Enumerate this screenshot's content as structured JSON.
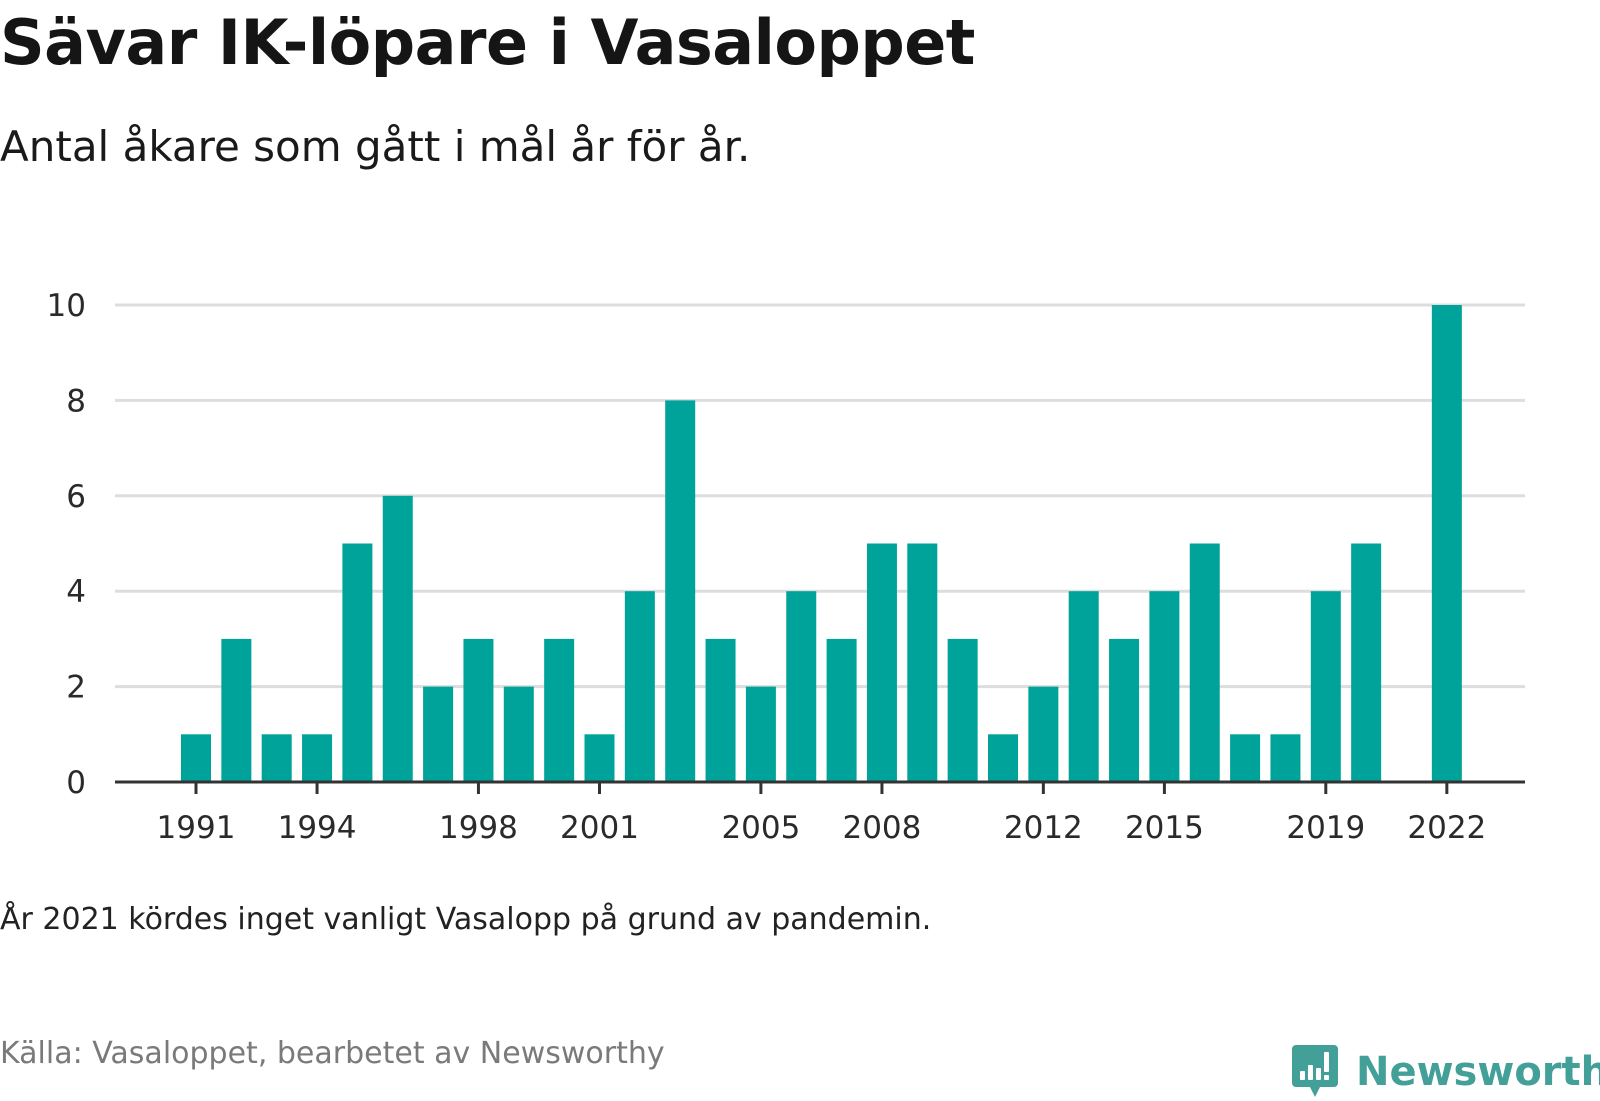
{
  "title": "Sävar IK-löpare i Vasaloppet",
  "subtitle": "Antal åkare som gått i mål år för år.",
  "note": "År 2021 kördes inget vanligt Vasalopp på grund av pandemin.",
  "source": "Källa: Vasaloppet, bearbetet av Newsworthy",
  "brand": {
    "name": "Newsworthy",
    "icon": "newsworthy-logo-icon",
    "color": "#42a098"
  },
  "chart_data": {
    "type": "bar",
    "bar_color": "#00a39a",
    "grid": true,
    "grid_color": "#dddddd",
    "x": [
      1991,
      1992,
      1993,
      1994,
      1995,
      1996,
      1997,
      1998,
      1999,
      2000,
      2001,
      2002,
      2003,
      2004,
      2005,
      2006,
      2007,
      2008,
      2009,
      2010,
      2011,
      2012,
      2013,
      2014,
      2015,
      2016,
      2017,
      2018,
      2019,
      2020,
      2021,
      2022
    ],
    "values": [
      1,
      3,
      1,
      1,
      5,
      6,
      2,
      3,
      2,
      3,
      1,
      4,
      8,
      3,
      2,
      4,
      3,
      5,
      5,
      3,
      1,
      2,
      4,
      3,
      4,
      5,
      1,
      1,
      4,
      5,
      null,
      10
    ],
    "x_ticks": [
      1991,
      1994,
      1998,
      2001,
      2005,
      2008,
      2012,
      2015,
      2019,
      2022
    ],
    "y_ticks": [
      0,
      2,
      4,
      6,
      8,
      10
    ],
    "ylim": [
      0,
      10
    ],
    "xlabel": "",
    "ylabel": ""
  }
}
